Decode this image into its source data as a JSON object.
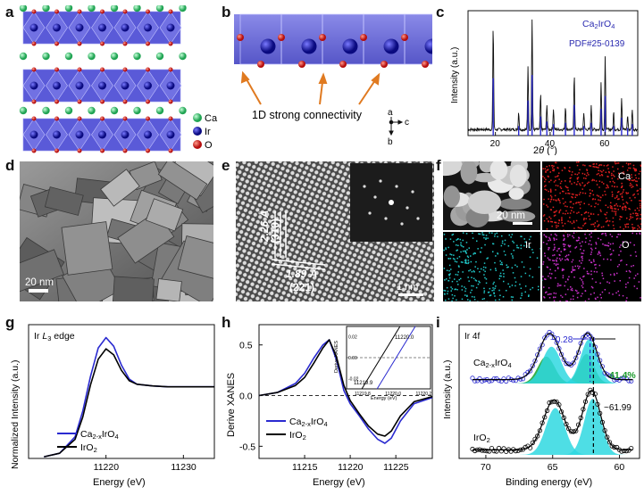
{
  "labels": {
    "a": "a",
    "b": "b",
    "c": "c",
    "d": "d",
    "e": "e",
    "f": "f",
    "g": "g",
    "h": "h",
    "i": "i"
  },
  "panel_a": {
    "legend": [
      "Ca",
      "Ir",
      "O"
    ],
    "colors": {
      "Ca": "#3dd17a",
      "Ir": "#1c1cb8",
      "O": "#e0271f"
    }
  },
  "panel_b": {
    "caption": "1D strong connectivity",
    "axes": {
      "a": "a",
      "b": "b",
      "c": "c"
    }
  },
  "panel_c": {
    "ylabel": "Intensity (a.u.)",
    "xlabel": "2θ (°)",
    "legend_sample": "Ca2IrO4",
    "legend_ref": "PDF#25-0139",
    "xticks": [
      "20",
      "40",
      "60"
    ],
    "chart_data": {
      "type": "line",
      "xlim": [
        10,
        72
      ],
      "peaks_x": [
        19.2,
        28.5,
        31.9,
        33.4,
        36.5,
        38.8,
        41.2,
        45.6,
        48.8,
        52.3,
        55.0,
        58.6,
        60.1,
        63.2,
        66.1,
        68.3,
        70.0
      ],
      "peaks_y": [
        0.9,
        0.15,
        0.55,
        0.95,
        0.3,
        0.22,
        0.18,
        0.2,
        0.48,
        0.15,
        0.2,
        0.42,
        0.62,
        0.15,
        0.28,
        0.12,
        0.18
      ]
    }
  },
  "panel_d": {
    "scalebar": "20 nm"
  },
  "panel_e": {
    "d1": "2.26 Å",
    "p1": "(310)",
    "d2": "1.89 Å",
    "p2": "(221)",
    "scalebar": "1 nm"
  },
  "panel_f": {
    "scalebar": "20 nm",
    "maps": [
      "Ca",
      "Ir",
      "O"
    ]
  },
  "panel_g": {
    "edge_label": "Ir L3 edge",
    "ylabel": "Normalized Intensity (a.u.)",
    "xlabel": "Energy (eV)",
    "xticks": [
      "11220",
      "11230"
    ],
    "legend": [
      "Ca2-xIrO4",
      "IrO2"
    ],
    "colors": {
      "Ca2-xIrO4": "#2a2ad0",
      "IrO2": "#000000"
    },
    "chart_data": {
      "type": "line",
      "x": [
        11212,
        11214,
        11216,
        11217,
        11218,
        11219,
        11220,
        11221,
        11222,
        11223,
        11224,
        11226,
        11228,
        11230,
        11232,
        11234
      ],
      "series": [
        {
          "name": "Ca2-xIrO4",
          "values": [
            0.02,
            0.06,
            0.25,
            0.55,
            0.95,
            1.28,
            1.4,
            1.3,
            1.08,
            0.92,
            0.86,
            0.84,
            0.83,
            0.83,
            0.83,
            0.83
          ]
        },
        {
          "name": "IrO2",
          "values": [
            0.02,
            0.06,
            0.22,
            0.48,
            0.85,
            1.15,
            1.27,
            1.2,
            1.02,
            0.9,
            0.86,
            0.84,
            0.83,
            0.83,
            0.83,
            0.83
          ]
        }
      ],
      "xlim": [
        11210,
        11234
      ],
      "ylim": [
        0,
        1.55
      ]
    }
  },
  "panel_h": {
    "ylabel": "Derive XANES",
    "xlabel": "Energy (eV)",
    "yticks": [
      "0.5",
      "0.0",
      "-0.5"
    ],
    "xticks": [
      "11215",
      "11220",
      "11225"
    ],
    "legend": [
      "Ca2-xIrO4",
      "IrO2"
    ],
    "inset": {
      "ylabel": "Derive XANES",
      "xlabel": "Energy (eV)",
      "yticks": [
        "0.02",
        "0.00",
        "-0.02"
      ],
      "xticks": [
        "11219.8",
        "11220.0",
        "11220.2"
      ],
      "val_blue": "11220.0",
      "val_black": "11219.9"
    },
    "chart_data": {
      "type": "line",
      "x": [
        11210,
        11212,
        11214,
        11215,
        11216,
        11217,
        11217.7,
        11218.5,
        11219.3,
        11220,
        11221,
        11222,
        11223,
        11223.8,
        11224.5,
        11225.5,
        11227,
        11229
      ],
      "series": [
        {
          "name": "Ca2-xIrO4",
          "values": [
            0.0,
            0.03,
            0.12,
            0.22,
            0.37,
            0.5,
            0.55,
            0.35,
            0.05,
            -0.08,
            -0.2,
            -0.33,
            -0.43,
            -0.47,
            -0.42,
            -0.25,
            -0.08,
            -0.02
          ]
        },
        {
          "name": "IrO2",
          "values": [
            0.0,
            0.03,
            0.1,
            0.18,
            0.32,
            0.47,
            0.55,
            0.38,
            0.1,
            -0.05,
            -0.18,
            -0.3,
            -0.38,
            -0.4,
            -0.35,
            -0.2,
            -0.06,
            -0.01
          ]
        }
      ],
      "xlim": [
        11210,
        11229
      ],
      "ylim": [
        -0.62,
        0.7
      ]
    }
  },
  "panel_i": {
    "title": "Ir 4f",
    "ylabel": "Intensity (a.u.)",
    "xlabel": "Binding energy (eV)",
    "xticks": [
      "70",
      "65",
      "60"
    ],
    "shift": "~0.28",
    "percent": "41.4%",
    "peak_val": "~61.99",
    "sample1": "Ca2-xIrO4",
    "sample2": "IrO2"
  }
}
